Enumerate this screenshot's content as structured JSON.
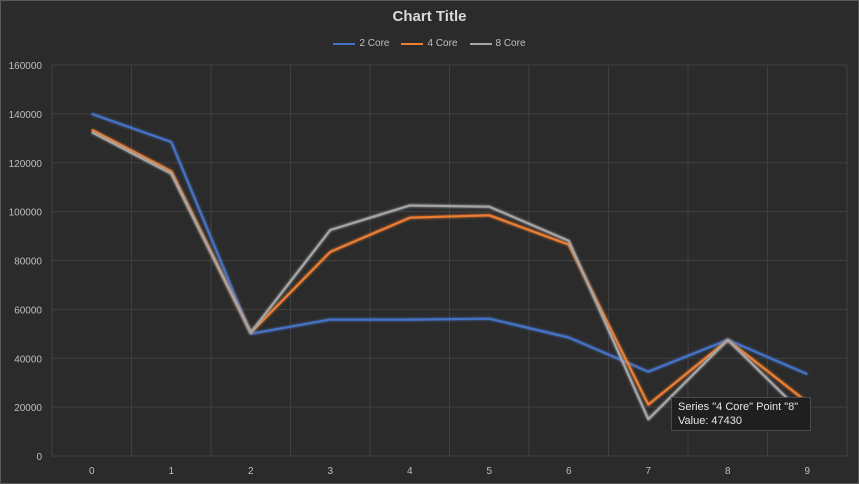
{
  "chart_data": {
    "type": "line",
    "title": "Chart Title",
    "x": [
      "0",
      "1",
      "2",
      "3",
      "4",
      "5",
      "6",
      "7",
      "8",
      "9"
    ],
    "y_ticks": [
      "0",
      "20000",
      "40000",
      "60000",
      "80000",
      "100000",
      "120000",
      "140000",
      "160000"
    ],
    "ylim": [
      0,
      160000
    ],
    "grid": true,
    "legend_position": "top",
    "series": [
      {
        "name": "2 Core",
        "color": "#4472c4",
        "values": [
          140000,
          128500,
          50000,
          55800,
          55800,
          56200,
          48500,
          34500,
          47500,
          33500
        ]
      },
      {
        "name": "4 Core",
        "color": "#ed7d31",
        "values": [
          133500,
          116500,
          50500,
          83500,
          97500,
          98500,
          86500,
          21000,
          47430,
          22000
        ]
      },
      {
        "name": "8 Core",
        "color": "#a5a5a5",
        "values": [
          132500,
          115500,
          50500,
          92500,
          102500,
          102000,
          88000,
          15000,
          47500,
          15500
        ]
      }
    ]
  },
  "tooltip": {
    "line1": "Series \"4 Core\" Point \"8\"",
    "line2": "Value: 47430"
  }
}
